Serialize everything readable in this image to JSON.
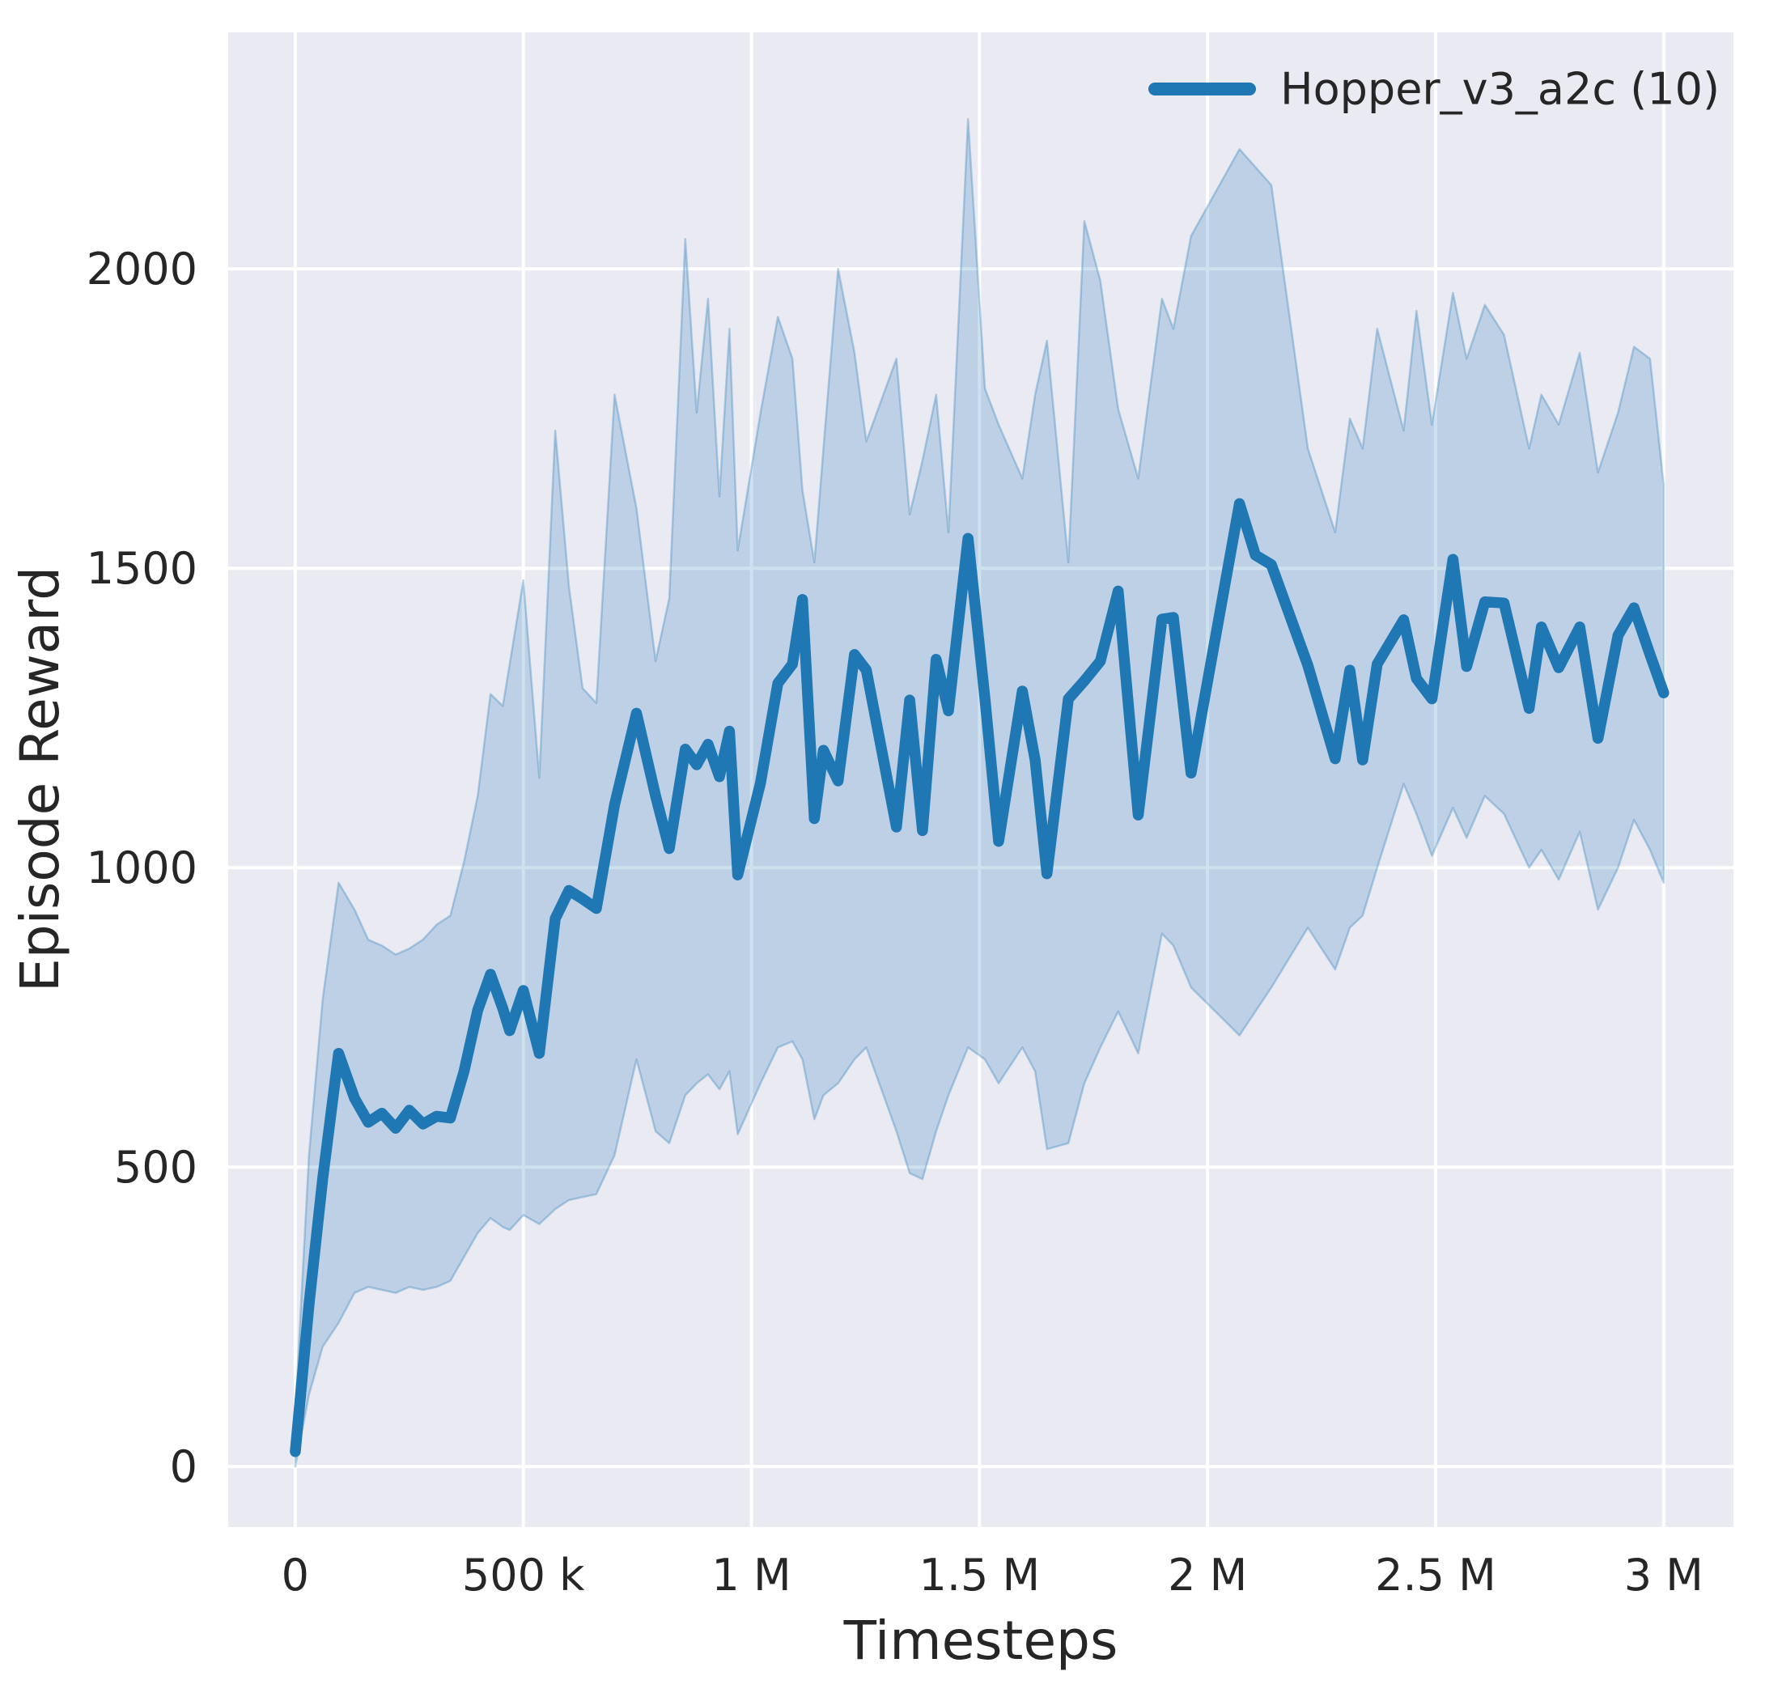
{
  "chart_data": {
    "type": "line",
    "title": "",
    "xlabel": "Timesteps",
    "ylabel": "Episode Reward",
    "grid": true,
    "legend_position": "upper right",
    "legend": [
      {
        "label": "Hopper_v3_a2c (10)",
        "color": "#1f77b4"
      }
    ],
    "xlim": [
      -147000,
      3153000
    ],
    "ylim": [
      -101,
      2395
    ],
    "x_ticks": [
      0,
      500000,
      1000000,
      1500000,
      2000000,
      2500000,
      3000000
    ],
    "x_tick_labels": [
      "0",
      "500 k",
      "1 M",
      "1.5 M",
      "2 M",
      "2.5 M",
      "3 M"
    ],
    "y_ticks": [
      0,
      500,
      1000,
      1500,
      2000
    ],
    "y_tick_labels": [
      "0",
      "500",
      "1000",
      "1500",
      "2000"
    ],
    "series": [
      {
        "name": "Hopper_v3_a2c (10)",
        "color": "#1f77b4",
        "x": [
          0,
          30000,
          60000,
          95000,
          130000,
          160000,
          190000,
          220000,
          250000,
          280000,
          310000,
          340000,
          370000,
          400000,
          428000,
          455000,
          470000,
          500000,
          535000,
          570000,
          600000,
          630000,
          660000,
          700000,
          748000,
          790000,
          820000,
          855000,
          880000,
          905000,
          930000,
          952000,
          970000,
          1020000,
          1058000,
          1090000,
          1112000,
          1138000,
          1158000,
          1190000,
          1226000,
          1252000,
          1318000,
          1347000,
          1375000,
          1405000,
          1432000,
          1475000,
          1512000,
          1542000,
          1594000,
          1622000,
          1648000,
          1695000,
          1730000,
          1765000,
          1804000,
          1848000,
          1900000,
          1925000,
          1964000,
          2070000,
          2105000,
          2140000,
          2220000,
          2280000,
          2312000,
          2340000,
          2372000,
          2430000,
          2458000,
          2492000,
          2538000,
          2568000,
          2608000,
          2650000,
          2705000,
          2732000,
          2770000,
          2816000,
          2856000,
          2900000,
          2935000,
          2970000,
          3000000
        ],
        "mean": [
          25,
          270,
          480,
          690,
          615,
          575,
          590,
          565,
          595,
          572,
          585,
          582,
          660,
          762,
          822,
          765,
          728,
          795,
          690,
          915,
          962,
          948,
          932,
          1105,
          1258,
          1120,
          1032,
          1198,
          1172,
          1206,
          1152,
          1228,
          988,
          1142,
          1308,
          1340,
          1448,
          1082,
          1196,
          1145,
          1356,
          1330,
          1068,
          1280,
          1062,
          1348,
          1262,
          1550,
          1282,
          1044,
          1295,
          1180,
          990,
          1282,
          1312,
          1345,
          1462,
          1088,
          1415,
          1418,
          1158,
          1608,
          1522,
          1506,
          1338,
          1182,
          1330,
          1180,
          1340,
          1414,
          1316,
          1282,
          1515,
          1336,
          1444,
          1442,
          1266,
          1402,
          1334,
          1402,
          1216,
          1388,
          1434,
          1356,
          1292
        ],
        "band_low": [
          0,
          120,
          200,
          240,
          290,
          300,
          295,
          290,
          300,
          295,
          300,
          310,
          350,
          390,
          415,
          400,
          395,
          420,
          405,
          430,
          445,
          450,
          455,
          520,
          680,
          560,
          540,
          620,
          640,
          655,
          630,
          660,
          555,
          640,
          700,
          710,
          680,
          580,
          620,
          640,
          680,
          700,
          560,
          490,
          480,
          560,
          620,
          700,
          680,
          640,
          700,
          660,
          530,
          540,
          640,
          700,
          760,
          690,
          890,
          870,
          800,
          720,
          760,
          800,
          900,
          830,
          900,
          920,
          1000,
          1140,
          1090,
          1020,
          1100,
          1050,
          1120,
          1090,
          1000,
          1030,
          980,
          1060,
          930,
          1000,
          1080,
          1030,
          975
        ],
        "band_high": [
          90,
          520,
          780,
          975,
          930,
          880,
          870,
          855,
          865,
          880,
          905,
          920,
          1010,
          1120,
          1290,
          1270,
          1340,
          1480,
          1150,
          1730,
          1470,
          1300,
          1275,
          1790,
          1600,
          1345,
          1450,
          2050,
          1760,
          1950,
          1620,
          1900,
          1530,
          1760,
          1920,
          1850,
          1630,
          1510,
          1700,
          2000,
          1860,
          1712,
          1850,
          1590,
          1680,
          1790,
          1560,
          2250,
          1800,
          1740,
          1650,
          1790,
          1880,
          1510,
          2080,
          1980,
          1766,
          1650,
          1950,
          1900,
          2055,
          2200,
          2170,
          2140,
          1700,
          1560,
          1750,
          1700,
          1900,
          1730,
          1930,
          1740,
          1960,
          1850,
          1940,
          1890,
          1700,
          1790,
          1740,
          1860,
          1660,
          1760,
          1870,
          1850,
          1640
        ]
      }
    ],
    "colors": {
      "figure_background": "#ffffff",
      "axes_background": "#eaeaf2",
      "grid": "#ffffff",
      "line": "#1f77b4",
      "band_fill": "rgba(31,119,180,0.22)",
      "band_edge": "rgba(31,119,180,0.30)",
      "text": "#262626"
    }
  }
}
